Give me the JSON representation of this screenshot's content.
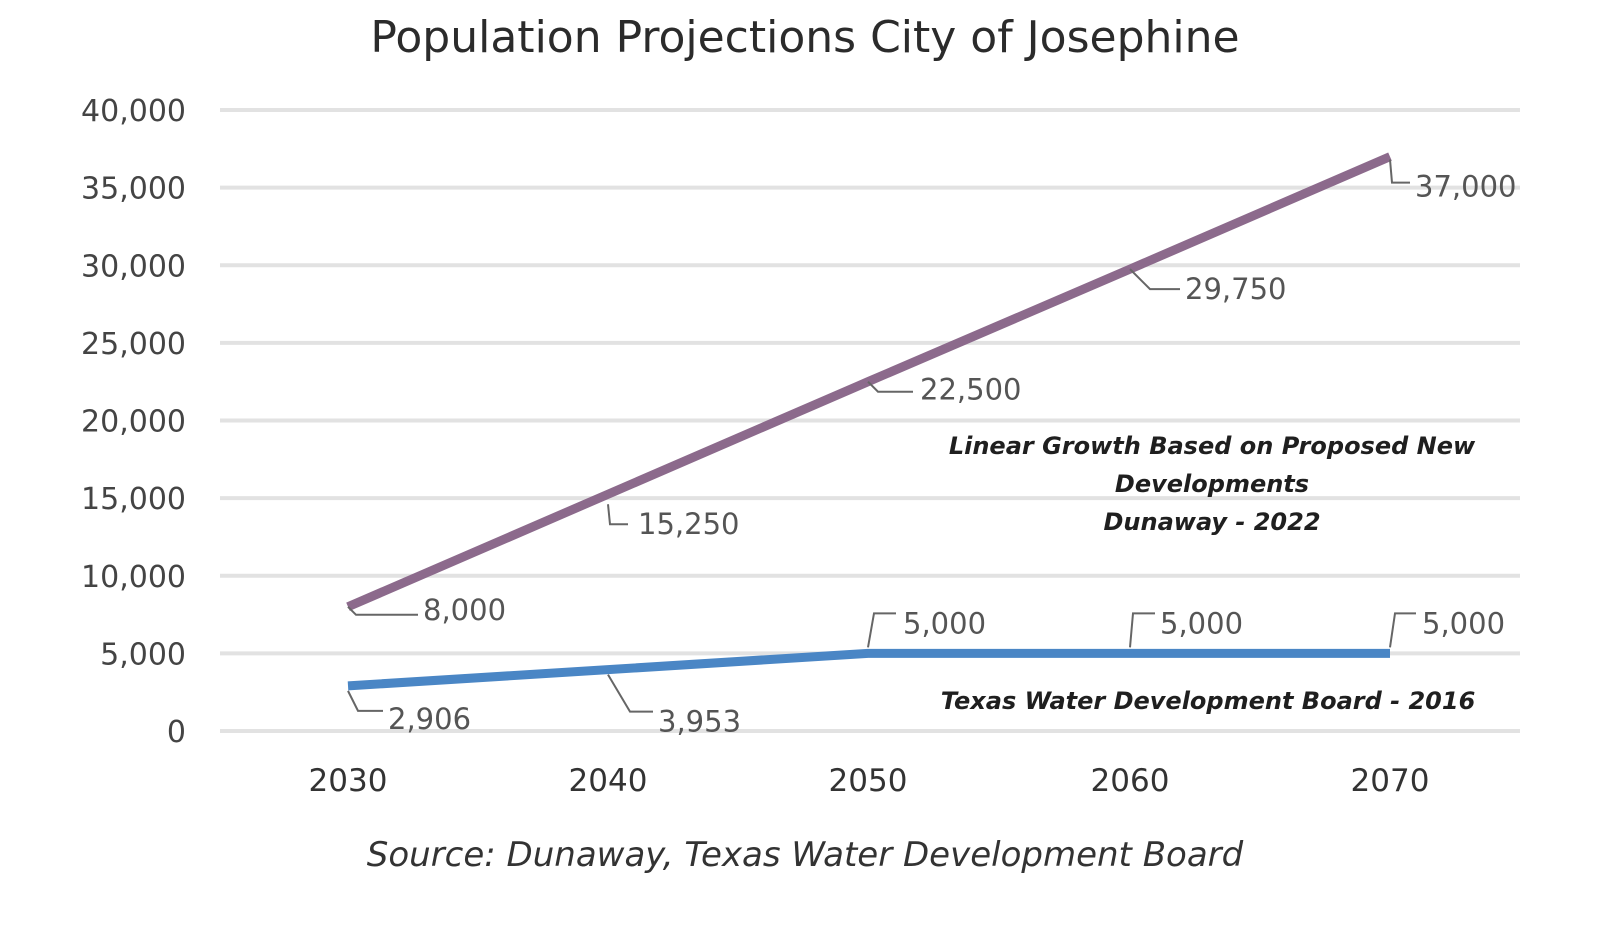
{
  "chart_data": {
    "type": "line",
    "title": "Population Projections City of Josephine",
    "source": "Source: Dunaway, Texas Water Development Board",
    "categories": [
      "2030",
      "2040",
      "2050",
      "2060",
      "2070"
    ],
    "ylim": [
      0,
      40000
    ],
    "yticks": [
      0,
      5000,
      10000,
      15000,
      20000,
      25000,
      30000,
      35000,
      40000
    ],
    "ytick_labels": [
      "0",
      "5,000",
      "10,000",
      "15,000",
      "20,000",
      "25,000",
      "30,000",
      "35,000",
      "40,000"
    ],
    "grid": true,
    "series": [
      {
        "key": "dunaway",
        "label_lines": [
          "Linear Growth Based on Proposed New",
          "Developments",
          "Dunaway - 2022"
        ],
        "color": "#8c6a8c",
        "values": [
          8000,
          15250,
          22500,
          29750,
          37000
        ],
        "data_labels": [
          "8,000",
          "15,250",
          "22,500",
          "29,750",
          "37,000"
        ]
      },
      {
        "key": "twdb",
        "label_lines": [
          "Texas Water Development Board - 2016"
        ],
        "color": "#4a86c5",
        "values": [
          2906,
          3953,
          5000,
          5000,
          5000
        ],
        "data_labels": [
          "2,906",
          "3,953",
          "5,000",
          "5,000",
          "5,000"
        ]
      }
    ]
  }
}
